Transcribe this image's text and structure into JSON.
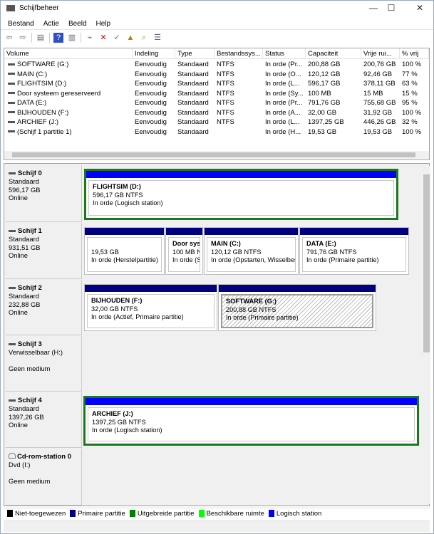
{
  "window": {
    "title": "Schijfbeheer",
    "minimize": "—",
    "maximize": "☐",
    "close": "✕"
  },
  "menu": [
    "Bestand",
    "Actie",
    "Beeld",
    "Help"
  ],
  "toolbar": [
    {
      "icon": "back-icon",
      "glyph": "⇦"
    },
    {
      "icon": "forward-icon",
      "glyph": "⇨"
    },
    {
      "icon": "console-tree-icon",
      "glyph": "▤"
    },
    {
      "icon": "help-icon",
      "glyph": "?"
    },
    {
      "icon": "properties-icon",
      "glyph": "▥"
    },
    {
      "icon": "connect-icon",
      "glyph": "⌁"
    },
    {
      "icon": "delete-icon",
      "glyph": "✕"
    },
    {
      "icon": "check-icon",
      "glyph": "✓"
    },
    {
      "icon": "folder-up-icon",
      "glyph": "▲"
    },
    {
      "icon": "search-folder-icon",
      "glyph": "⌕"
    },
    {
      "icon": "list-icon",
      "glyph": "☰"
    }
  ],
  "columns": [
    "Volume",
    "Indeling",
    "Type",
    "Bestandssys...",
    "Status",
    "Capaciteit",
    "Vrije rui...",
    "% vrij"
  ],
  "volumes": [
    [
      "SOFTWARE (G:)",
      "Eenvoudig",
      "Standaard",
      "NTFS",
      "In orde (Pr...",
      "200,88 GB",
      "200,76 GB",
      "100 %"
    ],
    [
      "MAIN (C:)",
      "Eenvoudig",
      "Standaard",
      "NTFS",
      "In orde (O...",
      "120,12 GB",
      "92,46 GB",
      "77 %"
    ],
    [
      "FLIGHTSIM (D:)",
      "Eenvoudig",
      "Standaard",
      "NTFS",
      "In orde (L...",
      "596,17 GB",
      "378,11 GB",
      "63 %"
    ],
    [
      "Door systeem gereserveerd",
      "Eenvoudig",
      "Standaard",
      "NTFS",
      "In orde (Sy...",
      "100 MB",
      "15 MB",
      "15 %"
    ],
    [
      "DATA (E:)",
      "Eenvoudig",
      "Standaard",
      "NTFS",
      "In orde (Pr...",
      "791,76 GB",
      "755,68 GB",
      "95 %"
    ],
    [
      "BIJHOUDEN (F:)",
      "Eenvoudig",
      "Standaard",
      "NTFS",
      "In orde (A...",
      "32,00 GB",
      "31,92 GB",
      "100 %"
    ],
    [
      "ARCHIEF (J:)",
      "Eenvoudig",
      "Standaard",
      "NTFS",
      "In orde (L...",
      "1397,25 GB",
      "446,26 GB",
      "32 %"
    ],
    [
      "(Schijf 1 partitie 1)",
      "Eenvoudig",
      "Standaard",
      "",
      "In orde (H...",
      "19,53 GB",
      "19,53 GB",
      "100 %"
    ]
  ],
  "disks": [
    {
      "name": "Schijf 0",
      "type": "Standaard",
      "size": "596,17 GB",
      "state": "Online",
      "partitions": [
        {
          "title": "FLIGHTSIM  (D:)",
          "size": "596,17 GB NTFS",
          "status": "In orde (Logisch station)",
          "kind": "logical"
        }
      ]
    },
    {
      "name": "Schijf 1",
      "type": "Standaard",
      "size": "931,51 GB",
      "state": "Online",
      "partitions": [
        {
          "title": "",
          "size": "19,53 GB",
          "status": "In orde (Herstelpartitie)",
          "kind": "primary"
        },
        {
          "title": "Door syst",
          "size": "100 MB N",
          "status": "In orde (S",
          "kind": "primary"
        },
        {
          "title": "MAIN  (C:)",
          "size": "120,12 GB NTFS",
          "status": "In orde (Opstarten, Wisselbes",
          "kind": "primary"
        },
        {
          "title": "DATA  (E:)",
          "size": "791,76 GB NTFS",
          "status": "In orde (Primaire partitie)",
          "kind": "primary"
        }
      ]
    },
    {
      "name": "Schijf 2",
      "type": "Standaard",
      "size": "232,88 GB",
      "state": "Online",
      "partitions": [
        {
          "title": "BIJHOUDEN  (F:)",
          "size": "32,00 GB NTFS",
          "status": "In orde (Actief, Primaire partitie)",
          "kind": "primary"
        },
        {
          "title": "SOFTWARE  (G:)",
          "size": "200,88 GB NTFS",
          "status": "In orde (Primaire partitie)",
          "kind": "primary",
          "selected": true
        }
      ]
    },
    {
      "name": "Schijf 3",
      "type": "Verwisselbaar (H:)",
      "size": "",
      "state": "Geen medium",
      "partitions": []
    },
    {
      "name": "Schijf 4",
      "type": "Standaard",
      "size": "1397,26 GB",
      "state": "Online",
      "partitions": [
        {
          "title": "ARCHIEF  (J:)",
          "size": "1397,25 GB NTFS",
          "status": "In orde (Logisch station)",
          "kind": "logical"
        }
      ]
    },
    {
      "name": "Cd-rom-station 0",
      "type": "Dvd (I:)",
      "size": "",
      "state": "Geen medium",
      "partitions": [],
      "icon": "cdrom-icon"
    }
  ],
  "legend": [
    {
      "label": "Niet-toegewezen",
      "color": "#000000"
    },
    {
      "label": "Primaire partitie",
      "color": "#000080"
    },
    {
      "label": "Uitgebreide partitie",
      "color": "#008000"
    },
    {
      "label": "Beschikbare ruimte",
      "color": "#00ff00"
    },
    {
      "label": "Logisch station",
      "color": "#0000ff"
    }
  ],
  "colors": {
    "primary": "#000080",
    "logical": "#0000ff",
    "extended": "#1a7a1a"
  }
}
